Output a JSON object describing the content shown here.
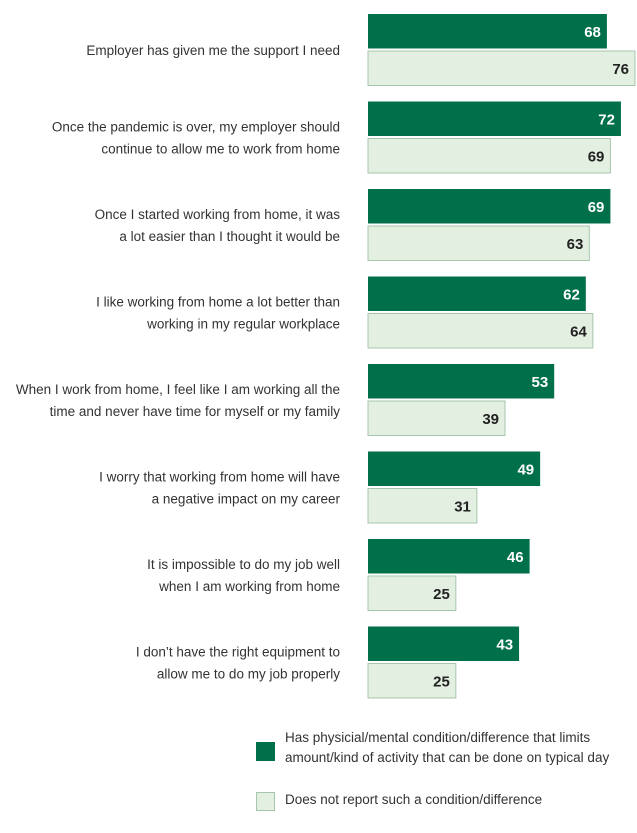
{
  "chart_data": {
    "type": "bar",
    "orientation": "horizontal",
    "categories": [
      [
        "Employer has given me the support I need"
      ],
      [
        "Once the pandemic is over, my employer should",
        "continue to allow me to work from home"
      ],
      [
        "Once I started working from home, it was",
        "a lot easier than I thought it would be"
      ],
      [
        "I like working from home a lot better than",
        "working in my regular workplace"
      ],
      [
        "When I work from home, I feel like I am working all the",
        "time and never have time for myself or my family"
      ],
      [
        "I worry that working from home will have",
        "a negative impact on my career"
      ],
      [
        "It is impossible to do my job well",
        "when I am working from home"
      ],
      [
        "I don’t have the right equipment to",
        "allow me to do my job properly"
      ]
    ],
    "series": [
      {
        "name": "Has physicial/mental condition/difference that limits amount/kind of activity that can be done on typical day",
        "legend_lines": [
          "Has physicial/mental condition/difference that limits",
          "amount/kind of activity that can be done on typical day"
        ],
        "color": "#00704a",
        "label_color": "#ffffff",
        "values": [
          68,
          72,
          69,
          62,
          53,
          49,
          46,
          43
        ]
      },
      {
        "name": "Does not report such a condition/difference",
        "legend_lines": [
          "Does not report such a condition/difference"
        ],
        "color": "#e3efe1",
        "border": "#a7c7ad",
        "label_color": "#222222",
        "values": [
          76,
          69,
          63,
          64,
          39,
          31,
          25,
          25
        ]
      }
    ],
    "xlim": [
      0,
      76
    ],
    "grid": false,
    "axes_visible": false,
    "legend_position": "bottom"
  }
}
